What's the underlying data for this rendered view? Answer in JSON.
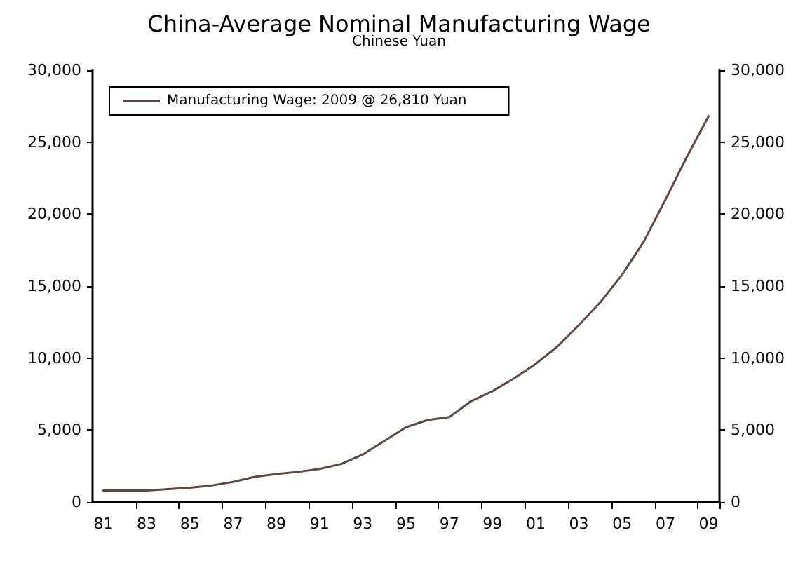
{
  "chart_data": {
    "type": "line",
    "title": "China-Average Nominal Manufacturing Wage",
    "subtitle": "Chinese Yuan",
    "categories": [
      "81",
      null,
      "83",
      null,
      "85",
      null,
      "87",
      null,
      "89",
      null,
      "91",
      null,
      "93",
      null,
      "95",
      null,
      "97",
      null,
      "99",
      null,
      "01",
      null,
      "03",
      null,
      "05",
      null,
      "07",
      null,
      "09"
    ],
    "series": [
      {
        "name": "Manufacturing Wage: 2009 @ 26,810 Yuan",
        "color": "#5b4a44",
        "values": [
          800,
          800,
          800,
          900,
          1000,
          1150,
          1400,
          1750,
          1950,
          2100,
          2300,
          2650,
          3300,
          4250,
          5200,
          5700,
          5900,
          7000,
          7700,
          8600,
          9600,
          10800,
          12300,
          13900,
          15800,
          18100,
          21000,
          24000,
          26810
        ]
      }
    ],
    "ylim": [
      0,
      30000
    ],
    "yticks": [
      0,
      {
        "value": 5000,
        "label": "5,000"
      },
      {
        "value": 10000,
        "label": "10,000"
      },
      {
        "value": 15000,
        "label": "15,000"
      },
      {
        "value": 20000,
        "label": "20,000"
      },
      {
        "value": 25000,
        "label": "25,000"
      },
      {
        "value": 30000,
        "label": "30,000"
      }
    ],
    "y2lim": [
      0,
      30000
    ],
    "y2ticks": [
      0,
      {
        "value": 5000,
        "label": "5,000"
      },
      {
        "value": 10000,
        "label": "10,000"
      },
      {
        "value": 15000,
        "label": "15,000"
      },
      {
        "value": 20000,
        "label": "20,000"
      },
      {
        "value": 25000,
        "label": "25,000"
      },
      {
        "value": 30000,
        "label": "30,000"
      }
    ],
    "grid": false,
    "legend": "top left",
    "marker": "none",
    "line_style": "solid"
  }
}
